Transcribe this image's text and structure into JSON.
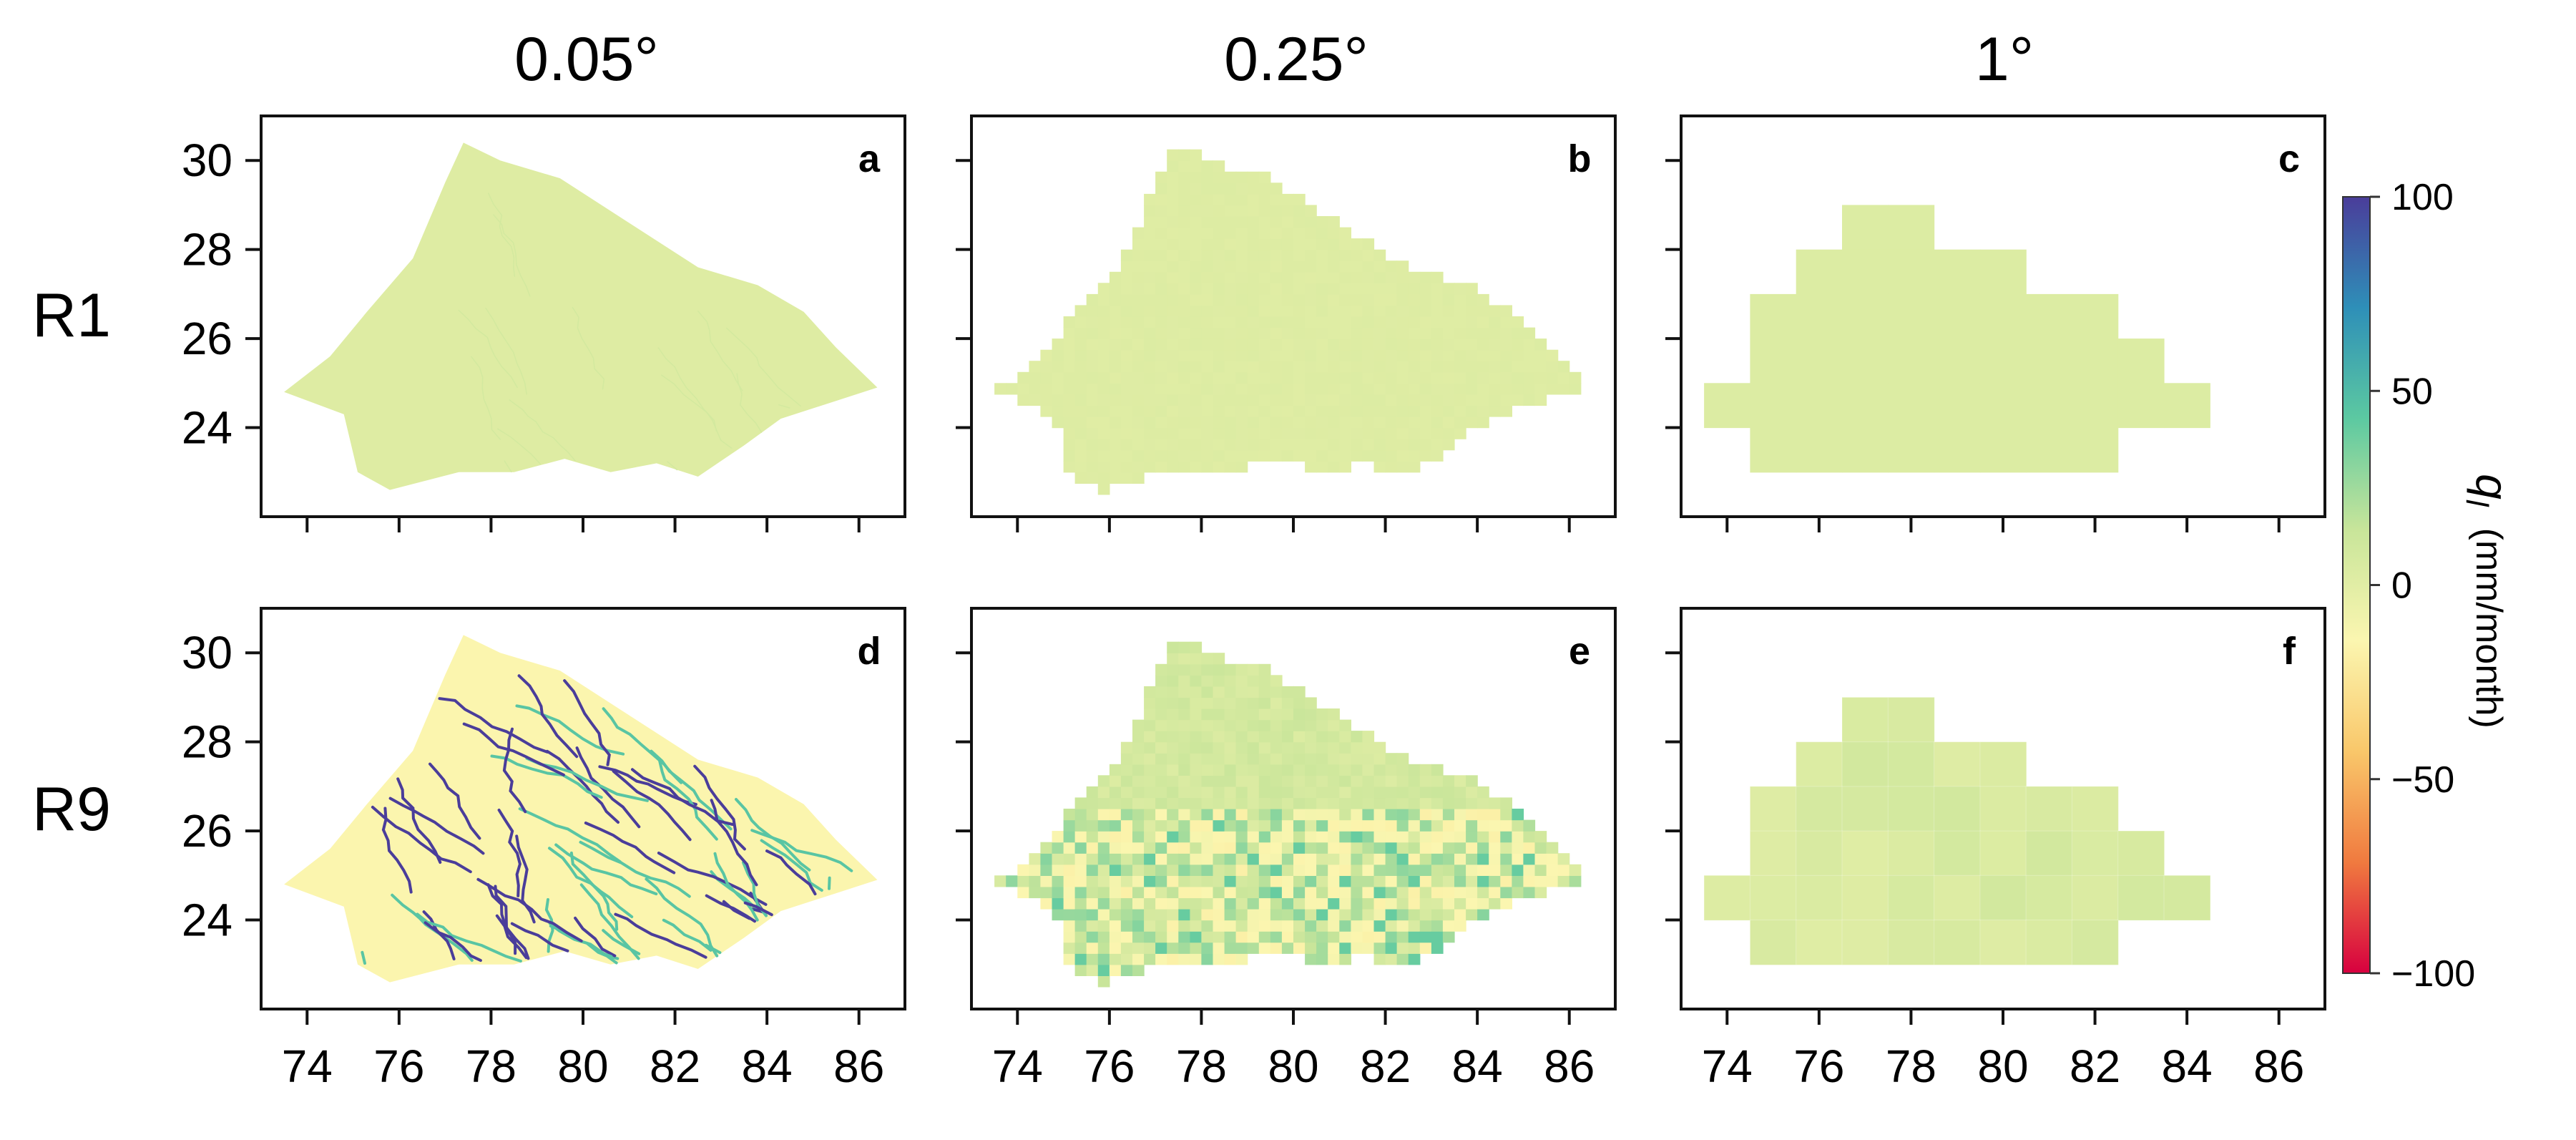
{
  "chart_data": {
    "type": "heatmap",
    "title": "",
    "columns": [
      "0.05°",
      "0.25°",
      "1°"
    ],
    "rows": [
      "R1",
      "R9"
    ],
    "panel_letters": [
      [
        "a",
        "b",
        "c"
      ],
      [
        "d",
        "e",
        "f"
      ]
    ],
    "x_range": [
      73,
      87
    ],
    "y_range": [
      22,
      31
    ],
    "x_ticks": [
      74,
      76,
      78,
      80,
      82,
      84,
      86
    ],
    "x_tick_labels": [
      "74",
      "76",
      "78",
      "80",
      "82",
      "84",
      "86"
    ],
    "y_ticks": [
      24,
      26,
      28,
      30
    ],
    "y_tick_labels": [
      "24",
      "26",
      "28",
      "30"
    ],
    "colorbar": {
      "label_symbol": "q",
      "label_subscript": "l",
      "label_units": "(mm/month)",
      "min": -100,
      "max": 100,
      "ticks": [
        100,
        50,
        0,
        -50,
        -100
      ],
      "tick_labels": [
        "100",
        "50",
        "0",
        "−50",
        "−100"
      ],
      "colors": [
        "#d7003f",
        "#f07a3f",
        "#f9c76a",
        "#fbf6b0",
        "#c8e59a",
        "#5cc9a1",
        "#2e8fb8",
        "#4a3d9a"
      ]
    },
    "basin_outline": [
      [
        73.5,
        24.8
      ],
      [
        74.5,
        25.6
      ],
      [
        75.3,
        26.6
      ],
      [
        76.3,
        27.8
      ],
      [
        77.0,
        29.5
      ],
      [
        77.4,
        30.4
      ],
      [
        78.2,
        30.0
      ],
      [
        79.5,
        29.6
      ],
      [
        81.0,
        28.6
      ],
      [
        82.5,
        27.6
      ],
      [
        83.8,
        27.2
      ],
      [
        84.8,
        26.6
      ],
      [
        85.5,
        25.8
      ],
      [
        86.4,
        24.9
      ],
      [
        85.5,
        24.6
      ],
      [
        84.3,
        24.2
      ],
      [
        83.5,
        23.6
      ],
      [
        82.5,
        22.9
      ],
      [
        81.6,
        23.2
      ],
      [
        80.6,
        23.0
      ],
      [
        79.6,
        23.3
      ],
      [
        78.5,
        23.0
      ],
      [
        77.3,
        23.0
      ],
      [
        75.8,
        22.6
      ],
      [
        75.1,
        23.0
      ],
      [
        74.8,
        24.3
      ]
    ],
    "coarse_cells_1deg": [
      [
        77,
        28.5
      ],
      [
        78,
        28.5
      ],
      [
        76,
        27.5
      ],
      [
        77,
        27.5
      ],
      [
        78,
        27.5
      ],
      [
        79,
        27.5
      ],
      [
        80,
        27.5
      ],
      [
        75,
        26.5
      ],
      [
        76,
        26.5
      ],
      [
        77,
        26.5
      ],
      [
        78,
        26.5
      ],
      [
        79,
        26.5
      ],
      [
        80,
        26.5
      ],
      [
        81,
        26.5
      ],
      [
        82,
        26.5
      ],
      [
        75,
        25.5
      ],
      [
        76,
        25.5
      ],
      [
        77,
        25.5
      ],
      [
        78,
        25.5
      ],
      [
        79,
        25.5
      ],
      [
        80,
        25.5
      ],
      [
        81,
        25.5
      ],
      [
        82,
        25.5
      ],
      [
        83,
        25.5
      ],
      [
        74,
        24.5
      ],
      [
        75,
        24.5
      ],
      [
        76,
        24.5
      ],
      [
        77,
        24.5
      ],
      [
        78,
        24.5
      ],
      [
        79,
        24.5
      ],
      [
        80,
        24.5
      ],
      [
        81,
        24.5
      ],
      [
        82,
        24.5
      ],
      [
        83,
        24.5
      ],
      [
        84,
        24.5
      ],
      [
        75,
        23.5
      ],
      [
        76,
        23.5
      ],
      [
        77,
        23.5
      ],
      [
        78,
        23.5
      ],
      [
        79,
        23.5
      ],
      [
        80,
        23.5
      ],
      [
        81,
        23.5
      ],
      [
        82,
        23.5
      ]
    ],
    "series": [
      {
        "row": "R1",
        "resolution": "0.05°",
        "q_typical_mm_month": 2,
        "q_range": [
          -5,
          8
        ]
      },
      {
        "row": "R1",
        "resolution": "0.25°",
        "q_typical_mm_month": 2,
        "q_range": [
          0,
          4
        ]
      },
      {
        "row": "R1",
        "resolution": "1°",
        "q_typical_mm_month": 3,
        "q_range": [
          2,
          4
        ]
      },
      {
        "row": "R9",
        "resolution": "0.05°",
        "q_typical_mm_month": -15,
        "q_range": [
          -25,
          100
        ]
      },
      {
        "row": "R9",
        "resolution": "0.25°",
        "q_typical_mm_month": 5,
        "q_range": [
          -20,
          45
        ]
      },
      {
        "row": "R9",
        "resolution": "1°",
        "q_typical_mm_month": 5,
        "q_range": [
          -8,
          15
        ]
      }
    ]
  }
}
